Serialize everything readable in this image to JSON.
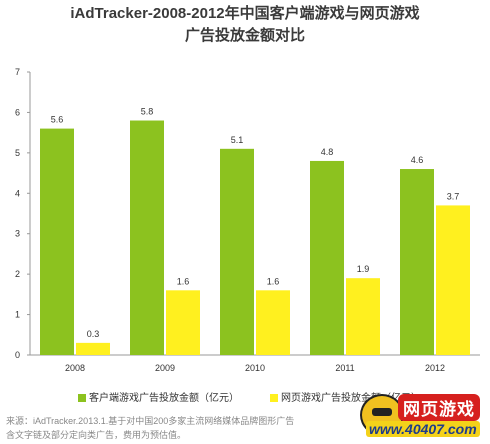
{
  "chart_data": {
    "type": "bar",
    "title_line1": "iAdTracker-2008-2012年中国客户端游戏与网页游戏",
    "title_line2": "广告投放金额对比",
    "categories": [
      "2008",
      "2009",
      "2010",
      "2011",
      "2012"
    ],
    "yticks": [
      "0",
      "1",
      "2",
      "3",
      "4",
      "5",
      "6",
      "7"
    ],
    "ylim": [
      0,
      7
    ],
    "grid": false,
    "legend_placement": "bottom",
    "series": [
      {
        "name": "客户端游戏广告投放金额（亿元）",
        "color": "#8cc21f",
        "values": [
          5.6,
          5.8,
          5.1,
          4.8,
          4.6
        ],
        "labels": [
          "5.6",
          "5.8",
          "5.1",
          "4.8",
          "4.6"
        ]
      },
      {
        "name": "网页游戏广告投放金额（亿元）",
        "color": "#fff01f",
        "values": [
          0.3,
          1.6,
          1.6,
          1.9,
          3.7
        ],
        "labels": [
          "0.3",
          "1.6",
          "1.6",
          "1.9",
          "3.7"
        ]
      }
    ]
  },
  "source": {
    "line1": "来源：iAdTracker.2013.1.基于对中国200多家主流网络媒体品牌图形广告",
    "line2": "含文字链及部分定向类广告，费用为预估值。"
  },
  "watermark": {
    "name": "网页游戏",
    "url": "www.40407.com"
  }
}
